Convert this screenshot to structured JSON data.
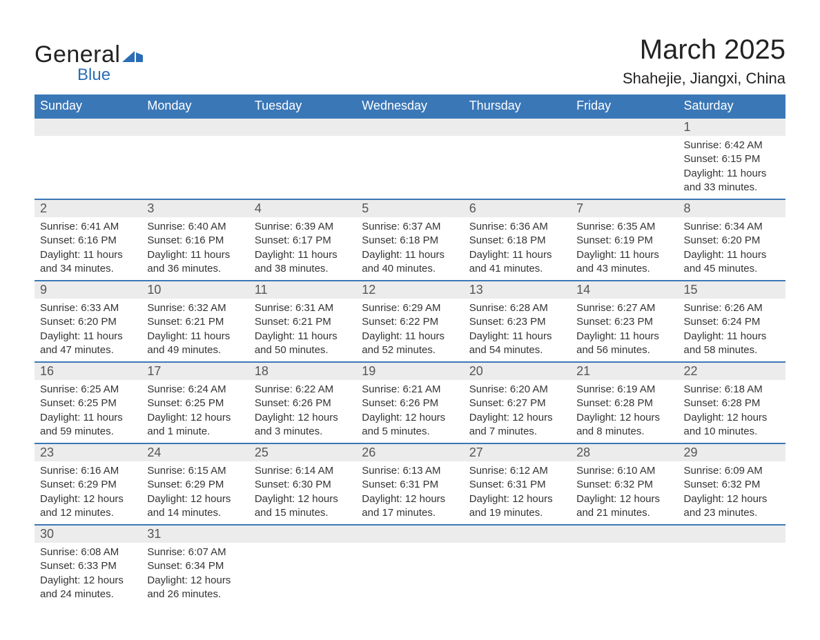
{
  "logo": {
    "word1": "General",
    "word2": "Blue"
  },
  "title": "March 2025",
  "location": "Shahejie, Jiangxi, China",
  "colors": {
    "header_bg": "#3a77b7",
    "header_text": "#ffffff",
    "daynum_bg": "#ececec",
    "border": "#3a77b7",
    "logo_blue": "#2a6db5"
  },
  "typography": {
    "title_fontsize": 40,
    "location_fontsize": 22,
    "header_fontsize": 18,
    "daynum_fontsize": 18,
    "body_fontsize": 15
  },
  "weekdays": [
    "Sunday",
    "Monday",
    "Tuesday",
    "Wednesday",
    "Thursday",
    "Friday",
    "Saturday"
  ],
  "weeks": [
    [
      null,
      null,
      null,
      null,
      null,
      null,
      {
        "d": "1",
        "sr": "6:42 AM",
        "ss": "6:15 PM",
        "dl": "11 hours and 33 minutes."
      }
    ],
    [
      {
        "d": "2",
        "sr": "6:41 AM",
        "ss": "6:16 PM",
        "dl": "11 hours and 34 minutes."
      },
      {
        "d": "3",
        "sr": "6:40 AM",
        "ss": "6:16 PM",
        "dl": "11 hours and 36 minutes."
      },
      {
        "d": "4",
        "sr": "6:39 AM",
        "ss": "6:17 PM",
        "dl": "11 hours and 38 minutes."
      },
      {
        "d": "5",
        "sr": "6:37 AM",
        "ss": "6:18 PM",
        "dl": "11 hours and 40 minutes."
      },
      {
        "d": "6",
        "sr": "6:36 AM",
        "ss": "6:18 PM",
        "dl": "11 hours and 41 minutes."
      },
      {
        "d": "7",
        "sr": "6:35 AM",
        "ss": "6:19 PM",
        "dl": "11 hours and 43 minutes."
      },
      {
        "d": "8",
        "sr": "6:34 AM",
        "ss": "6:20 PM",
        "dl": "11 hours and 45 minutes."
      }
    ],
    [
      {
        "d": "9",
        "sr": "6:33 AM",
        "ss": "6:20 PM",
        "dl": "11 hours and 47 minutes."
      },
      {
        "d": "10",
        "sr": "6:32 AM",
        "ss": "6:21 PM",
        "dl": "11 hours and 49 minutes."
      },
      {
        "d": "11",
        "sr": "6:31 AM",
        "ss": "6:21 PM",
        "dl": "11 hours and 50 minutes."
      },
      {
        "d": "12",
        "sr": "6:29 AM",
        "ss": "6:22 PM",
        "dl": "11 hours and 52 minutes."
      },
      {
        "d": "13",
        "sr": "6:28 AM",
        "ss": "6:23 PM",
        "dl": "11 hours and 54 minutes."
      },
      {
        "d": "14",
        "sr": "6:27 AM",
        "ss": "6:23 PM",
        "dl": "11 hours and 56 minutes."
      },
      {
        "d": "15",
        "sr": "6:26 AM",
        "ss": "6:24 PM",
        "dl": "11 hours and 58 minutes."
      }
    ],
    [
      {
        "d": "16",
        "sr": "6:25 AM",
        "ss": "6:25 PM",
        "dl": "11 hours and 59 minutes."
      },
      {
        "d": "17",
        "sr": "6:24 AM",
        "ss": "6:25 PM",
        "dl": "12 hours and 1 minute."
      },
      {
        "d": "18",
        "sr": "6:22 AM",
        "ss": "6:26 PM",
        "dl": "12 hours and 3 minutes."
      },
      {
        "d": "19",
        "sr": "6:21 AM",
        "ss": "6:26 PM",
        "dl": "12 hours and 5 minutes."
      },
      {
        "d": "20",
        "sr": "6:20 AM",
        "ss": "6:27 PM",
        "dl": "12 hours and 7 minutes."
      },
      {
        "d": "21",
        "sr": "6:19 AM",
        "ss": "6:28 PM",
        "dl": "12 hours and 8 minutes."
      },
      {
        "d": "22",
        "sr": "6:18 AM",
        "ss": "6:28 PM",
        "dl": "12 hours and 10 minutes."
      }
    ],
    [
      {
        "d": "23",
        "sr": "6:16 AM",
        "ss": "6:29 PM",
        "dl": "12 hours and 12 minutes."
      },
      {
        "d": "24",
        "sr": "6:15 AM",
        "ss": "6:29 PM",
        "dl": "12 hours and 14 minutes."
      },
      {
        "d": "25",
        "sr": "6:14 AM",
        "ss": "6:30 PM",
        "dl": "12 hours and 15 minutes."
      },
      {
        "d": "26",
        "sr": "6:13 AM",
        "ss": "6:31 PM",
        "dl": "12 hours and 17 minutes."
      },
      {
        "d": "27",
        "sr": "6:12 AM",
        "ss": "6:31 PM",
        "dl": "12 hours and 19 minutes."
      },
      {
        "d": "28",
        "sr": "6:10 AM",
        "ss": "6:32 PM",
        "dl": "12 hours and 21 minutes."
      },
      {
        "d": "29",
        "sr": "6:09 AM",
        "ss": "6:32 PM",
        "dl": "12 hours and 23 minutes."
      }
    ],
    [
      {
        "d": "30",
        "sr": "6:08 AM",
        "ss": "6:33 PM",
        "dl": "12 hours and 24 minutes."
      },
      {
        "d": "31",
        "sr": "6:07 AM",
        "ss": "6:34 PM",
        "dl": "12 hours and 26 minutes."
      },
      null,
      null,
      null,
      null,
      null
    ]
  ],
  "labels": {
    "sunrise": "Sunrise: ",
    "sunset": "Sunset: ",
    "daylight": "Daylight: "
  }
}
